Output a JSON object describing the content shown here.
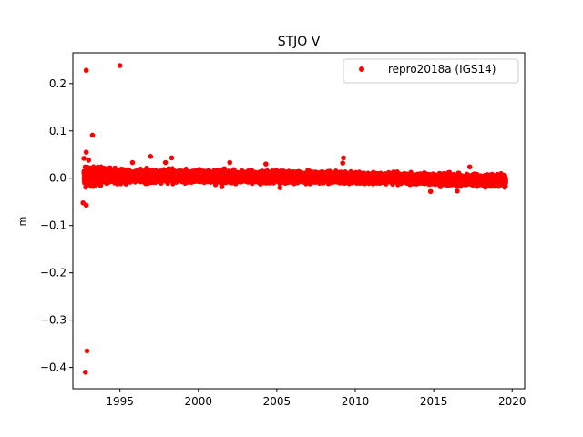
{
  "chart_data": {
    "type": "scatter",
    "title": "STJO V",
    "xlabel": "",
    "ylabel": "m",
    "xlim": [
      1992.0,
      2020.8
    ],
    "ylim": [
      -0.445,
      0.265
    ],
    "xticks": [
      1995,
      2000,
      2005,
      2010,
      2015,
      2020
    ],
    "xtick_labels": [
      "1995",
      "2000",
      "2005",
      "2010",
      "2015",
      "2020"
    ],
    "yticks": [
      0.2,
      0.1,
      0.0,
      -0.1,
      -0.2,
      -0.3,
      -0.4
    ],
    "ytick_labels": [
      "0.2",
      "0.1",
      "0.0",
      "−0.1",
      "−0.2",
      "−0.3",
      "−0.4"
    ],
    "grid": false,
    "legend_position": "top-right",
    "series": [
      {
        "name": "repro2018a (IGS14)",
        "color": "#ff0000",
        "marker": "circle",
        "band": {
          "x_start": 1992.7,
          "x_end": 2019.6,
          "center": [
            [
              1992.7,
              0.004
            ],
            [
              1998.0,
              0.004
            ],
            [
              2003.0,
              0.003
            ],
            [
              2008.0,
              0.002
            ],
            [
              2012.0,
              0.0
            ],
            [
              2016.0,
              -0.003
            ],
            [
              2019.6,
              -0.005
            ]
          ],
          "half_width": [
            [
              1992.7,
              0.016
            ],
            [
              1996.0,
              0.011
            ],
            [
              2005.0,
              0.01
            ],
            [
              2012.0,
              0.009
            ],
            [
              2019.6,
              0.01
            ]
          ],
          "sampling_per_year": 365
        },
        "outliers": [
          [
            1992.85,
            0.228
          ],
          [
            1995.0,
            0.238
          ],
          [
            1993.25,
            0.091
          ],
          [
            1992.85,
            0.055
          ],
          [
            1992.7,
            0.042
          ],
          [
            1993.0,
            0.038
          ],
          [
            1996.95,
            0.046
          ],
          [
            1998.3,
            0.043
          ],
          [
            1997.9,
            0.033
          ],
          [
            1995.8,
            0.033
          ],
          [
            2009.25,
            0.043
          ],
          [
            2009.2,
            0.032
          ],
          [
            2002.0,
            0.033
          ],
          [
            2004.3,
            0.03
          ],
          [
            2017.3,
            0.024
          ],
          [
            2001.5,
            -0.018
          ],
          [
            2005.2,
            -0.02
          ],
          [
            2014.8,
            -0.028
          ],
          [
            2016.5,
            -0.027
          ],
          [
            1992.65,
            -0.052
          ],
          [
            1992.85,
            -0.057
          ],
          [
            1992.9,
            -0.365
          ],
          [
            1992.8,
            -0.41
          ]
        ]
      }
    ]
  }
}
